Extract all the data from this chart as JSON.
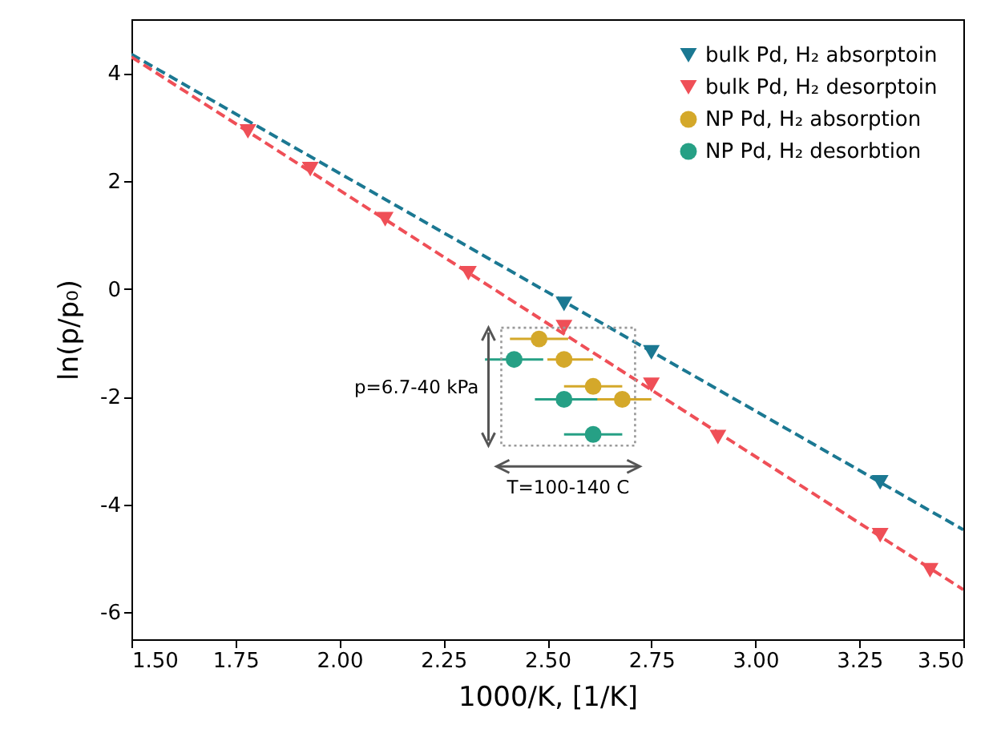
{
  "chart_data": {
    "type": "scatter",
    "xlabel": "1000/K, [1/K]",
    "ylabel": "ln(p/p₀)",
    "xlim": [
      1.5,
      3.5
    ],
    "xticks": [
      {
        "value": 1.5,
        "label": "1.50"
      },
      {
        "value": 1.75,
        "label": "1.75"
      },
      {
        "value": 2.0,
        "label": "2.00"
      },
      {
        "value": 2.25,
        "label": "2.25"
      },
      {
        "value": 2.5,
        "label": "2.50"
      },
      {
        "value": 2.75,
        "label": "2.75"
      },
      {
        "value": 3.0,
        "label": "3.00"
      },
      {
        "value": 3.25,
        "label": "3.25"
      },
      {
        "value": 3.5,
        "label": "3.50"
      }
    ],
    "ylim": [
      -6.5,
      5
    ],
    "yticks": [
      -6,
      -4,
      -2,
      0,
      2,
      4
    ],
    "legend": "top right",
    "annotations": [
      "p=6.7-40 kPa",
      "T=100-140 C"
    ],
    "series": [
      {
        "name": "bulk Pd, H₂ absorptoin",
        "marker": "triangle",
        "color": "#1b7892",
        "x": [
          2.54,
          2.75,
          3.3
        ],
        "values": [
          -0.28,
          -1.18,
          -3.59
        ]
      },
      {
        "name": "bulk Pd, H₂ desorptoin",
        "marker": "triangle",
        "color": "#ef4f57",
        "x": [
          1.78,
          1.93,
          2.11,
          2.31,
          2.54,
          2.75,
          2.91,
          3.3,
          3.42
        ],
        "values": [
          2.92,
          2.22,
          1.29,
          0.29,
          -0.71,
          -1.78,
          -2.75,
          -4.57,
          -5.22
        ]
      },
      {
        "name": "NP Pd, H₂ absorption",
        "marker": "circle",
        "color": "#d4a82a",
        "x": [
          2.48,
          2.54,
          2.61,
          2.68
        ],
        "values": [
          -0.93,
          -1.31,
          -1.81,
          -2.05
        ],
        "xerrors": [
          [
            2.41,
            2.55
          ],
          [
            2.5,
            2.61
          ],
          [
            2.54,
            2.68
          ],
          [
            2.61,
            2.75
          ]
        ]
      },
      {
        "name": "NP Pd, H₂ desorbtion",
        "marker": "circle",
        "color": "#26a085",
        "x": [
          2.42,
          2.54,
          2.61
        ],
        "values": [
          -1.31,
          -2.05,
          -2.7
        ],
        "xerrors": [
          [
            2.35,
            2.49
          ],
          [
            2.47,
            2.62
          ],
          [
            2.54,
            2.68
          ]
        ]
      },
      {
        "type": "line",
        "color": "#1b7892",
        "line_style": "dashed",
        "marker": "none",
        "x": [
          1.5,
          3.5
        ],
        "values": [
          4.35,
          -4.47
        ]
      },
      {
        "type": "line",
        "color": "#ef4f57",
        "line_style": "dashed",
        "marker": "none",
        "x": [
          1.5,
          3.5
        ],
        "values": [
          4.3,
          -5.58
        ]
      }
    ]
  }
}
